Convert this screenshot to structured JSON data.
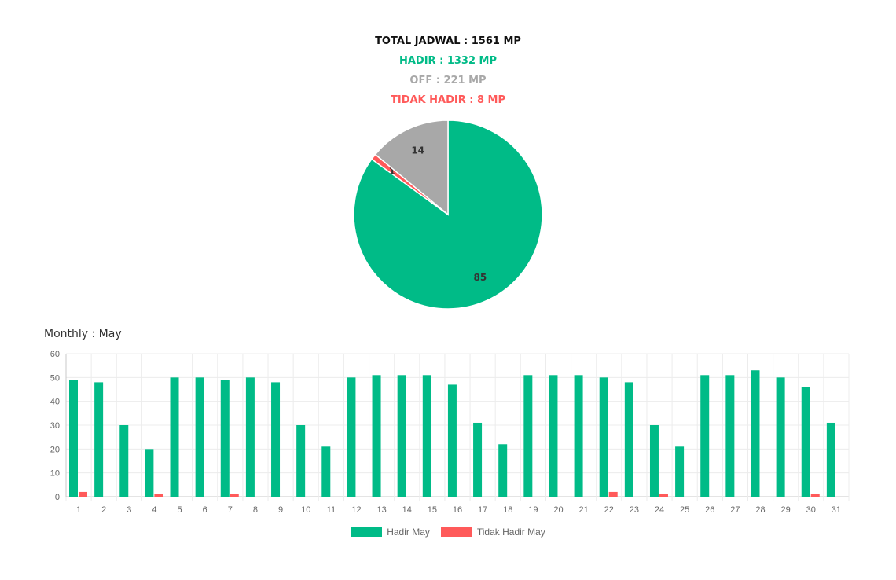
{
  "summary": {
    "total": "TOTAL JADWAL : 1561 MP",
    "hadir": "HADIR : 1332 MP",
    "off": "OFF : 221 MP",
    "tidak_hadir": "TIDAK HADIR : 8 MP"
  },
  "colors": {
    "hadir": "#00bb87",
    "off": "#a8a8a8",
    "tidak_hadir": "#ff5a5a"
  },
  "monthly": {
    "title": "Monthly : May"
  },
  "chart_data": [
    {
      "type": "pie",
      "labels": [
        "Hadir",
        "Tidak Hadir",
        "Off"
      ],
      "values": [
        85,
        1,
        14
      ],
      "colors": [
        "#00bb87",
        "#ff5a5a",
        "#a8a8a8"
      ],
      "data_labels": [
        "85",
        "1",
        "14"
      ]
    },
    {
      "type": "bar",
      "categories": [
        "1",
        "2",
        "3",
        "4",
        "5",
        "6",
        "7",
        "8",
        "9",
        "10",
        "11",
        "12",
        "13",
        "14",
        "15",
        "16",
        "17",
        "18",
        "19",
        "20",
        "21",
        "22",
        "23",
        "24",
        "25",
        "26",
        "27",
        "28",
        "29",
        "30",
        "31"
      ],
      "series": [
        {
          "name": "Hadir May",
          "color": "#00bb87",
          "values": [
            49,
            48,
            30,
            20,
            50,
            50,
            49,
            50,
            48,
            30,
            21,
            50,
            51,
            51,
            51,
            47,
            31,
            22,
            51,
            51,
            51,
            50,
            48,
            30,
            21,
            51,
            51,
            53,
            50,
            46,
            31
          ]
        },
        {
          "name": "Tidak Hadir May",
          "color": "#ff5a5a",
          "values": [
            2,
            0,
            0,
            1,
            0,
            0,
            1,
            0,
            0,
            0,
            0,
            0,
            0,
            0,
            0,
            0,
            0,
            0,
            0,
            0,
            0,
            2,
            0,
            1,
            0,
            0,
            0,
            0,
            0,
            1,
            0
          ]
        }
      ],
      "ylim": [
        0,
        60
      ],
      "yticks": [
        "0",
        "10",
        "20",
        "30",
        "40",
        "50",
        "60"
      ],
      "grid": true,
      "legend": "bottom-center"
    }
  ]
}
